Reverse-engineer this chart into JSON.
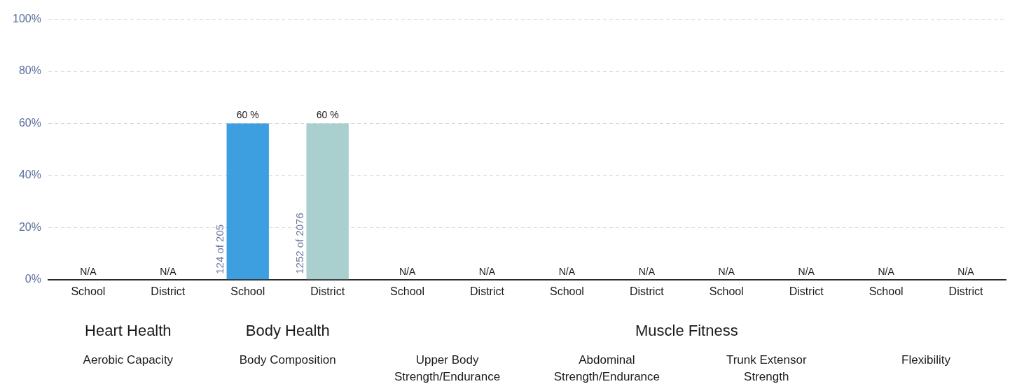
{
  "chart_data": {
    "type": "bar",
    "categories": [
      "School",
      "District",
      "School",
      "District",
      "School",
      "District",
      "School",
      "District",
      "School",
      "District",
      "School",
      "District"
    ],
    "values": [
      null,
      null,
      60,
      60,
      null,
      null,
      null,
      null,
      null,
      null,
      null,
      null
    ],
    "colors": [
      "#3d9ee0",
      "#a9cfcf",
      "#3d9ee0",
      "#a9cfcf",
      "#3d9ee0",
      "#a9cfcf",
      "#3d9ee0",
      "#a9cfcf",
      "#3d9ee0",
      "#a9cfcf",
      "#3d9ee0",
      "#a9cfcf"
    ],
    "value_labels": [
      "N/A",
      "N/A",
      "60 %",
      "60 %",
      "N/A",
      "N/A",
      "N/A",
      "N/A",
      "N/A",
      "N/A",
      "N/A",
      "N/A"
    ],
    "ylim": [
      0,
      100
    ],
    "yticks": [
      {
        "value": 0,
        "label": "0%"
      },
      {
        "value": 20,
        "label": "20%"
      },
      {
        "value": 40,
        "label": "40%"
      },
      {
        "value": 60,
        "label": "60%"
      },
      {
        "value": 80,
        "label": "80%"
      },
      {
        "value": 100,
        "label": "100%"
      }
    ],
    "grid": "y",
    "legend": false,
    "annotations": [
      "124 of 205",
      "1252 of 2076",
      "Heart Health",
      "Body Health",
      "Muscle Fitness",
      "Aerobic Capacity",
      "Body Composition",
      "Upper Body Strength/Endurance",
      "Abdominal Strength/Endurance",
      "Trunk Extensor Strength",
      "Flexibility"
    ]
  }
}
